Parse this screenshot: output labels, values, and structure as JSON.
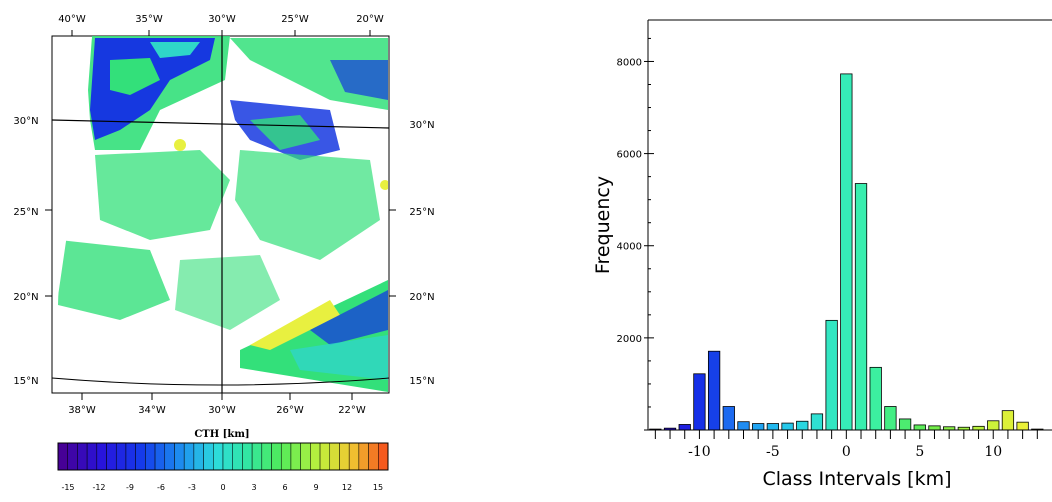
{
  "map": {
    "top_lon_labels": [
      "40°W",
      "35°W",
      "30°W",
      "25°W",
      "20°W"
    ],
    "bottom_lon_labels": [
      "38°W",
      "34°W",
      "30°W",
      "26°W",
      "22°W"
    ],
    "lat_labels": [
      "30°N",
      "25°N",
      "20°N",
      "15°N"
    ],
    "colorbar_title": "CTH [km]",
    "colorbar_ticks": [
      "-15",
      "-12",
      "-9",
      "-6",
      "-3",
      "0",
      "3",
      "6",
      "9",
      "12",
      "15"
    ],
    "colors": {
      "frame": "#000000",
      "cloud_green": "#33e07a",
      "cloud_cyan": "#2fd6c8",
      "cloud_blue": "#1638e0",
      "cloud_yellow": "#e8f040"
    }
  },
  "chart_data": {
    "type": "bar",
    "ylabel": "Frequency",
    "xlabel": "Class Intervals  [km]",
    "x_ticks": [
      "-10",
      "-5",
      "0",
      "5",
      "10"
    ],
    "y_ticks": [
      "2000",
      "4000",
      "6000",
      "8000"
    ],
    "xlim": [
      -13.5,
      14
    ],
    "ylim": [
      0,
      8900
    ],
    "x": [
      -13,
      -12,
      -11,
      -10,
      -9,
      -8,
      -7,
      -6,
      -5,
      -4,
      -3,
      -2,
      -1,
      0,
      1,
      2,
      3,
      4,
      5,
      6,
      7,
      8,
      9,
      10,
      11,
      12,
      13
    ],
    "values": [
      20,
      40,
      120,
      1220,
      1710,
      510,
      180,
      140,
      140,
      150,
      190,
      350,
      2380,
      7730,
      5350,
      1360,
      510,
      240,
      110,
      90,
      70,
      60,
      80,
      200,
      420,
      170,
      20
    ],
    "bar_colors": [
      "#3a00b8",
      "#2a10d0",
      "#2020e0",
      "#1630e8",
      "#1640e8",
      "#1c6af0",
      "#1f8cf2",
      "#21a4f2",
      "#22b8ee",
      "#26c8ea",
      "#2ad6e0",
      "#2fe0d2",
      "#33e6c2",
      "#36ecb8",
      "#38eeae",
      "#3cf0a0",
      "#44ee84",
      "#4cec70",
      "#5cec5a",
      "#74ee4a",
      "#8af046",
      "#a2f240",
      "#b8f23c",
      "#ccf23a",
      "#dcf038",
      "#eaf038",
      "#f0e838"
    ]
  }
}
